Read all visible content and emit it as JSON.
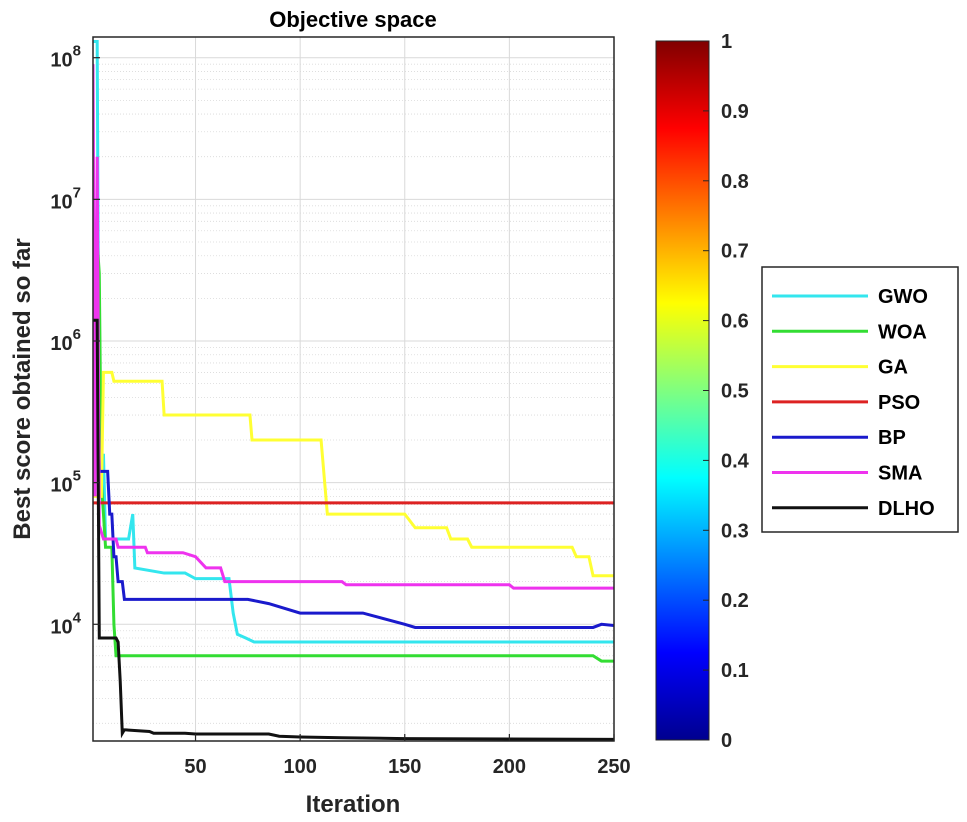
{
  "chart_data": {
    "type": "line",
    "title": "Objective space",
    "xlabel": "Iteration",
    "ylabel": "Best score obtained so far",
    "yscale": "log",
    "xlim": [
      1,
      250
    ],
    "ylim": [
      1500,
      140000000
    ],
    "grid": true,
    "minor_grid": true,
    "x_ticks": [
      50,
      100,
      150,
      200,
      250
    ],
    "x_tick_labels": [
      "50",
      "100",
      "150",
      "200",
      "250"
    ],
    "y_ticks": [
      10000,
      100000,
      1000000,
      10000000,
      100000000
    ],
    "y_tick_labels": [
      {
        "base": "10",
        "exp": "4"
      },
      {
        "base": "10",
        "exp": "5"
      },
      {
        "base": "10",
        "exp": "6"
      },
      {
        "base": "10",
        "exp": "7"
      },
      {
        "base": "10",
        "exp": "8"
      }
    ],
    "legend_position": "right",
    "colorbar": {
      "ticks": [
        0,
        0.1,
        0.2,
        0.3,
        0.4,
        0.5,
        0.6,
        0.7,
        0.8,
        0.9,
        1
      ],
      "tick_labels": [
        "0",
        "0.1",
        "0.2",
        "0.3",
        "0.4",
        "0.5",
        "0.6",
        "0.7",
        "0.8",
        "0.9",
        "1"
      ],
      "colormap": "jet"
    },
    "series": [
      {
        "name": "GWO",
        "color": "#33e6ee",
        "points": [
          [
            1,
            130000000
          ],
          [
            3,
            130000000
          ],
          [
            4,
            100000
          ],
          [
            5,
            100000
          ],
          [
            6,
            160000
          ],
          [
            7,
            40000
          ],
          [
            9,
            40000
          ],
          [
            10,
            40000
          ],
          [
            18,
            40000
          ],
          [
            20,
            60000
          ],
          [
            21,
            25000
          ],
          [
            35,
            23000
          ],
          [
            45,
            23000
          ],
          [
            50,
            21000
          ],
          [
            66,
            21000
          ],
          [
            68,
            12000
          ],
          [
            70,
            8500
          ],
          [
            74,
            8000
          ],
          [
            78,
            7500
          ],
          [
            250,
            7500
          ]
        ]
      },
      {
        "name": "WOA",
        "color": "#33dd33",
        "points": [
          [
            1,
            1000000
          ],
          [
            2,
            6500000
          ],
          [
            3,
            5000000
          ],
          [
            4,
            3000000
          ],
          [
            5,
            100000
          ],
          [
            6,
            60000
          ],
          [
            7,
            35000
          ],
          [
            10,
            35000
          ],
          [
            11,
            10000
          ],
          [
            12,
            6000
          ],
          [
            240,
            6000
          ],
          [
            244,
            5500
          ],
          [
            250,
            5500
          ]
        ]
      },
      {
        "name": "GA",
        "color": "#ffff33",
        "points": [
          [
            1,
            80000
          ],
          [
            5,
            80000
          ],
          [
            6,
            600000
          ],
          [
            10,
            600000
          ],
          [
            11,
            520000
          ],
          [
            34,
            520000
          ],
          [
            35,
            300000
          ],
          [
            76,
            300000
          ],
          [
            77,
            200000
          ],
          [
            110,
            200000
          ],
          [
            113,
            60000
          ],
          [
            150,
            60000
          ],
          [
            155,
            48000
          ],
          [
            170,
            48000
          ],
          [
            172,
            40000
          ],
          [
            180,
            40000
          ],
          [
            182,
            35000
          ],
          [
            230,
            35000
          ],
          [
            232,
            30000
          ],
          [
            238,
            30000
          ],
          [
            240,
            22000
          ],
          [
            250,
            22000
          ]
        ]
      },
      {
        "name": "PSO",
        "color": "#dd2222",
        "points": [
          [
            1,
            72000
          ],
          [
            250,
            72000
          ]
        ]
      },
      {
        "name": "BP",
        "color": "#1a1acc",
        "points": [
          [
            1,
            1000000
          ],
          [
            3,
            1000000
          ],
          [
            4,
            120000
          ],
          [
            8,
            120000
          ],
          [
            9,
            60000
          ],
          [
            10,
            60000
          ],
          [
            11,
            30000
          ],
          [
            12,
            30000
          ],
          [
            13,
            20000
          ],
          [
            15,
            20000
          ],
          [
            16,
            15000
          ],
          [
            75,
            15000
          ],
          [
            85,
            14000
          ],
          [
            100,
            12000
          ],
          [
            130,
            12000
          ],
          [
            150,
            10000
          ],
          [
            155,
            9500
          ],
          [
            240,
            9500
          ],
          [
            244,
            10000
          ],
          [
            250,
            9800
          ]
        ]
      },
      {
        "name": "SMA",
        "color": "#ee33ee",
        "points": [
          [
            1,
            90000000
          ],
          [
            2,
            80000
          ],
          [
            3,
            20000000
          ],
          [
            4,
            50000
          ],
          [
            6,
            40000
          ],
          [
            12,
            40000
          ],
          [
            13,
            35000
          ],
          [
            26,
            35000
          ],
          [
            27,
            32000
          ],
          [
            44,
            32000
          ],
          [
            50,
            30000
          ],
          [
            55,
            25000
          ],
          [
            62,
            25000
          ],
          [
            64,
            20000
          ],
          [
            120,
            20000
          ],
          [
            122,
            19000
          ],
          [
            200,
            19000
          ],
          [
            202,
            18000
          ],
          [
            250,
            18000
          ]
        ]
      },
      {
        "name": "DLHO",
        "color": "#111111",
        "points": [
          [
            1,
            1400000
          ],
          [
            3,
            1400000
          ],
          [
            4,
            8000
          ],
          [
            12,
            8000
          ],
          [
            13,
            7500
          ],
          [
            14,
            4000
          ],
          [
            15,
            1700
          ],
          [
            16,
            1800
          ],
          [
            28,
            1750
          ],
          [
            30,
            1700
          ],
          [
            45,
            1700
          ],
          [
            50,
            1680
          ],
          [
            85,
            1680
          ],
          [
            90,
            1620
          ],
          [
            100,
            1600
          ],
          [
            120,
            1580
          ],
          [
            150,
            1560
          ],
          [
            250,
            1540
          ]
        ]
      }
    ]
  }
}
